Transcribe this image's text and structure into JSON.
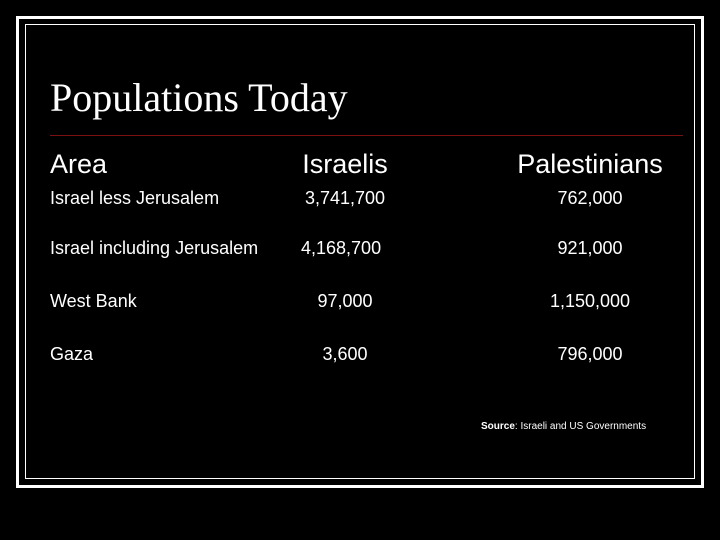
{
  "title": "Populations Today",
  "table": {
    "headers": [
      "Area",
      "Israelis",
      "Palestinians"
    ],
    "rows": [
      [
        "Israel less Jerusalem",
        "3,741,700",
        "762,000"
      ],
      [
        "Israel including Jerusalem",
        "4,168,700",
        "921,000"
      ],
      [
        "West Bank",
        "97,000",
        "1,150,000"
      ],
      [
        "Gaza",
        "3,600",
        "796,000"
      ]
    ]
  },
  "source": {
    "label": "Source",
    "text": ": Israeli and US Governments"
  },
  "colors": {
    "background": "#000000",
    "text": "#ffffff",
    "title_rule": "#7a1010"
  }
}
